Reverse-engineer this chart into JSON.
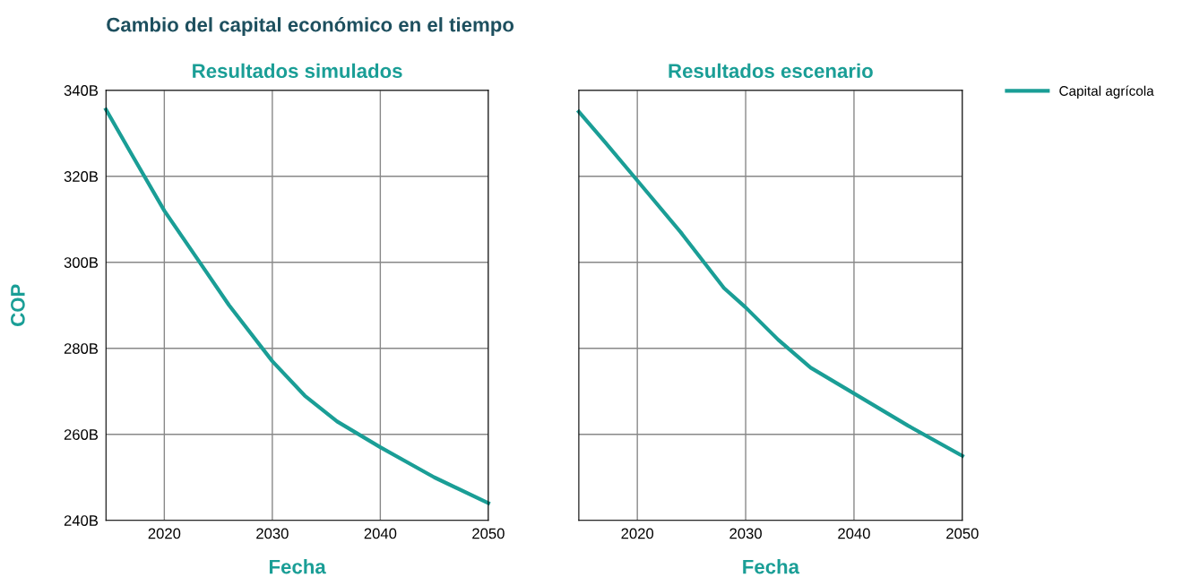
{
  "chart_data": [
    {
      "type": "line",
      "title": "Resultados simulados",
      "xlabel": "Fecha",
      "ylabel": "COP",
      "annotations": [
        "Cambio del capital económico en el tiempo"
      ],
      "x": [
        2014.6,
        2017,
        2020,
        2023,
        2026,
        2030,
        2033,
        2036,
        2040,
        2045,
        2050
      ],
      "series": [
        {
          "name": "Capital agrícola",
          "color": "#1a9e96",
          "values": [
            335.5,
            325,
            312,
            301,
            290,
            277,
            269,
            263,
            257,
            250,
            244
          ]
        }
      ],
      "xlim": [
        2014.6,
        2050
      ],
      "xticks": [
        2020,
        2030,
        2040,
        2050
      ],
      "ylim": [
        240,
        340
      ],
      "yticks": [
        {
          "value": 240,
          "label": "240B"
        },
        {
          "value": 260,
          "label": "260B"
        },
        {
          "value": 280,
          "label": "280B"
        },
        {
          "value": 300,
          "label": "300B"
        },
        {
          "value": 320,
          "label": "320B"
        },
        {
          "value": 340,
          "label": "340B"
        }
      ],
      "grid": true,
      "legend": "top right",
      "marker": "none",
      "line_style": "solid"
    },
    {
      "type": "line",
      "title": "Resultados escenario",
      "xlabel": "Fecha",
      "x": [
        2014.6,
        2017,
        2020,
        2024,
        2028,
        2030,
        2033,
        2036,
        2040,
        2045,
        2050
      ],
      "series": [
        {
          "color": "#1a9e96",
          "values": [
            335,
            328,
            319,
            307,
            294,
            289.5,
            282,
            275.5,
            269.5,
            262,
            255
          ]
        }
      ],
      "xlim": [
        2014.6,
        2050
      ],
      "xticks": [
        2020,
        2030,
        2040,
        2050
      ],
      "ylim": [
        240,
        340
      ],
      "yticks": [
        240,
        260,
        280,
        300,
        320,
        340
      ],
      "grid": true,
      "legend": false,
      "tick_labels": "x",
      "marker": "none",
      "line_style": "solid"
    }
  ]
}
